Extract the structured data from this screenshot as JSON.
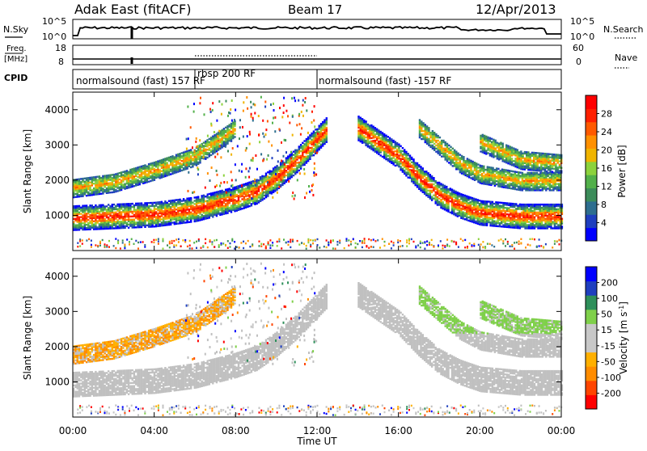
{
  "header": {
    "title": "Adak East (fitACF)",
    "beam": "Beam 17",
    "date": "12/Apr/2013"
  },
  "noise_panel": {
    "left_label": "N.Sky",
    "right_label": "N.Search",
    "ticks_left": [
      "10^5",
      "10^0"
    ],
    "ticks_right": [
      "10^5",
      "10^0"
    ]
  },
  "freq_panel": {
    "left_label_line1": "Freq.",
    "left_label_line2": "[MHz]",
    "left_ticks": [
      "18",
      "8"
    ],
    "right_label": "Nave",
    "right_ticks": [
      "60",
      "0"
    ]
  },
  "cpid_panel": {
    "label": "CPID",
    "segments": [
      {
        "start_hour": 0.0,
        "end_hour": 6.0,
        "text": "normalsound (fast) 157 RF"
      },
      {
        "start_hour": 6.0,
        "end_hour": 12.0,
        "text": "rbsp 200 RF"
      },
      {
        "start_hour": 12.0,
        "end_hour": 24.0,
        "text": "normalsound (fast) -157 RF"
      }
    ]
  },
  "x_axis": {
    "label": "Time UT",
    "ticks": [
      "00:00",
      "04:00",
      "08:00",
      "12:00",
      "16:00",
      "20:00",
      "00:00"
    ]
  },
  "colors": {
    "power_scale": [
      "#0000ff",
      "#1f3fbf",
      "#2e6e8f",
      "#3c8c5a",
      "#52b04a",
      "#8cd23c",
      "#f0b400",
      "#ff9000",
      "#ff5a00",
      "#ff2000",
      "#ff0000"
    ],
    "velocity_scale": [
      "#ff0000",
      "#ff4500",
      "#ff8c00",
      "#ffb000",
      "#c8c8c8",
      "#c8c8c8",
      "#7fd04a",
      "#2e8f5a",
      "#1f3fbf",
      "#0000ff"
    ],
    "ground_scatter": "#c0c0c0"
  },
  "chart_data": [
    {
      "type": "heatmap",
      "title": "",
      "xlabel": "",
      "ylabel": "Slant Range [km]",
      "colorbar_label": "Power [dB]",
      "colorbar_ticks": [
        "4",
        "8",
        "12",
        "16",
        "20",
        "24",
        "28"
      ],
      "xlim_hours": [
        0,
        24
      ],
      "ylim_km": [
        0,
        4500
      ],
      "y_ticks": [
        "1000",
        "2000",
        "3000",
        "4000"
      ],
      "bands": [
        {
          "name": "",
          "points_hour_km": [
            [
              0,
              950
            ],
            [
              2,
              1000
            ],
            [
              4,
              1050
            ],
            [
              6,
              1200
            ],
            [
              8,
              1500
            ],
            [
              9,
              1700
            ],
            [
              10,
              2100
            ],
            [
              11,
              2600
            ],
            [
              12,
              3200
            ],
            [
              12.5,
              3500
            ]
          ]
        },
        {
          "name": "",
          "points_hour_km": [
            [
              0,
              1800
            ],
            [
              2,
              1950
            ],
            [
              4,
              2300
            ],
            [
              5,
              2500
            ],
            [
              6,
              2700
            ],
            [
              7,
              3100
            ],
            [
              8,
              3500
            ]
          ]
        },
        {
          "name": "",
          "points_hour_km": [
            [
              14,
              3500
            ],
            [
              16,
              2700
            ],
            [
              17,
              2100
            ],
            [
              18,
              1600
            ],
            [
              19,
              1300
            ],
            [
              20,
              1100
            ],
            [
              22,
              1000
            ],
            [
              24,
              1000
            ]
          ]
        },
        {
          "name": "",
          "points_hour_km": [
            [
              17,
              3500
            ],
            [
              18,
              3000
            ],
            [
              19,
              2500
            ],
            [
              20,
              2200
            ],
            [
              22,
              2000
            ],
            [
              24,
              2000
            ]
          ]
        },
        {
          "name": "",
          "points_hour_km": [
            [
              20,
              3100
            ],
            [
              22,
              2600
            ],
            [
              24,
              2500
            ]
          ]
        }
      ]
    },
    {
      "type": "heatmap",
      "title": "",
      "xlabel": "Time UT",
      "ylabel": "Slant Range [km]",
      "colorbar_label": "Velocity [m s^-1]",
      "colorbar_ticks": [
        "-200",
        "-100",
        "-50",
        "-15",
        "15",
        "50",
        "100",
        "200"
      ],
      "xlim_hours": [
        0,
        24
      ],
      "ylim_km": [
        0,
        4500
      ],
      "y_ticks": [
        "1000",
        "2000",
        "3000",
        "4000"
      ]
    }
  ]
}
